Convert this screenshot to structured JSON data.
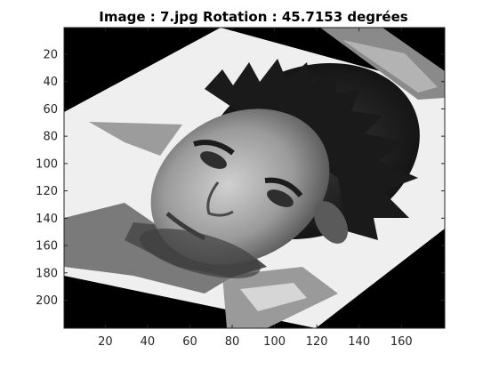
{
  "figure": {
    "title": "Image : 7.jpg Rotation : 45.7153 degrées",
    "image_content": "rotated grayscale face photo",
    "background_color": "#ffffff",
    "axes_color": "#262626",
    "canvas_color": "#000000"
  },
  "axes": {
    "x": {
      "ticks": [
        20,
        40,
        60,
        80,
        100,
        120,
        140,
        160
      ],
      "range": [
        0.5,
        180.5
      ]
    },
    "y": {
      "ticks": [
        20,
        40,
        60,
        80,
        100,
        120,
        140,
        160,
        180,
        200
      ],
      "range": [
        0.5,
        220.5
      ],
      "reversed": true
    }
  }
}
